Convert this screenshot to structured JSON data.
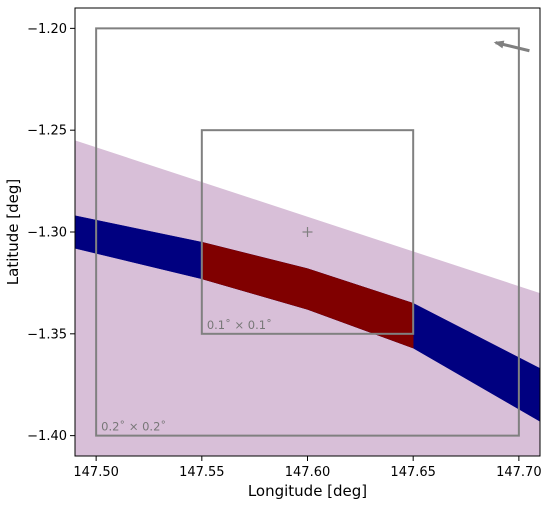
{
  "chart_data": {
    "type": "area",
    "xlabel": "Longitude [deg]",
    "ylabel": "Latitude [deg]",
    "xlim": [
      147.49,
      147.71
    ],
    "ylim": [
      -1.41,
      -1.19
    ],
    "x_ticks": [
      147.5,
      147.55,
      147.6,
      147.65,
      147.7
    ],
    "y_ticks": [
      -1.2,
      -1.25,
      -1.3,
      -1.35,
      -1.4
    ],
    "x_tick_labels": [
      "147.50",
      "147.55",
      "147.60",
      "147.65",
      "147.70"
    ],
    "y_tick_labels": [
      "−1.20",
      "−1.25",
      "−1.30",
      "−1.35",
      "−1.40"
    ],
    "grid": false,
    "series": [
      {
        "kind": "region",
        "color": "#d8bfd8",
        "upper_edge": {
          "x": [
            147.49,
            147.71
          ],
          "y": [
            -1.255,
            -1.33
          ]
        }
      },
      {
        "kind": "band",
        "color": "#000080",
        "x": [
          147.49,
          147.55,
          147.6,
          147.65,
          147.71
        ],
        "y_upper": [
          -1.292,
          -1.305,
          -1.318,
          -1.335,
          -1.367
        ],
        "y_lower": [
          -1.308,
          -1.323,
          -1.338,
          -1.357,
          -1.393
        ]
      },
      {
        "kind": "band",
        "color": "#800000",
        "x": [
          147.55,
          147.6,
          147.65
        ],
        "y_upper": [
          -1.305,
          -1.318,
          -1.335
        ],
        "y_lower": [
          -1.323,
          -1.338,
          -1.357
        ]
      }
    ],
    "boxes": [
      {
        "label": "0.2˚ × 0.2˚",
        "x": [
          147.5,
          147.7
        ],
        "y": [
          -1.4,
          -1.2
        ],
        "color": "#808080"
      },
      {
        "label": "0.1˚ × 0.1˚",
        "x": [
          147.55,
          147.65
        ],
        "y": [
          -1.35,
          -1.25
        ],
        "color": "#808080"
      }
    ],
    "center_marker": {
      "x": 147.6,
      "y": -1.3,
      "symbol": "+"
    },
    "arrow": {
      "from": [
        147.705,
        -1.211
      ],
      "to": [
        147.689,
        -1.207
      ],
      "color": "#808080"
    }
  }
}
